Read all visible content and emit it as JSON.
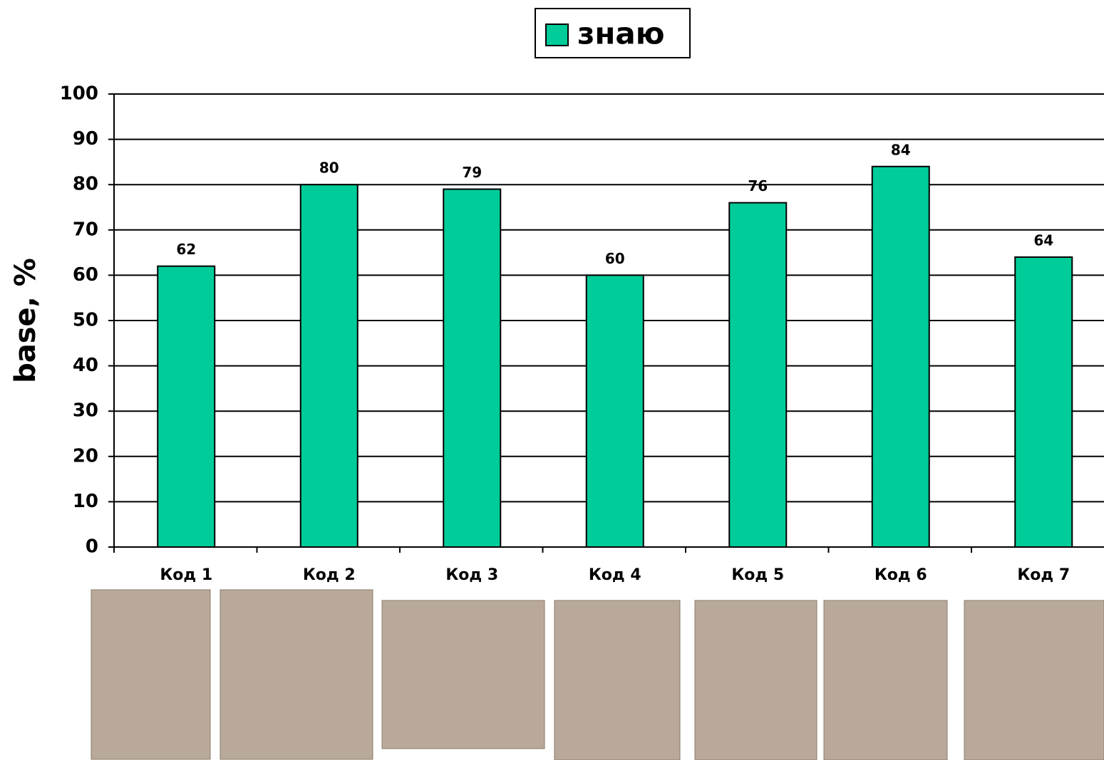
{
  "chart_data": {
    "type": "bar",
    "y_label": "base, %",
    "categories": [
      "Код 1",
      "Код 2",
      "Код 3",
      "Код 4",
      "Код 5",
      "Код 6",
      "Код 7"
    ],
    "series": [
      {
        "name": "знаю",
        "color": "#00cc99",
        "values": [
          62,
          80,
          79,
          60,
          76,
          84,
          64
        ]
      }
    ],
    "ylim": [
      0,
      100
    ],
    "yticks": [
      0,
      10,
      20,
      30,
      40,
      50,
      60,
      70,
      80,
      90,
      100
    ],
    "grid": true,
    "legend": "top",
    "data_labels": true
  }
}
